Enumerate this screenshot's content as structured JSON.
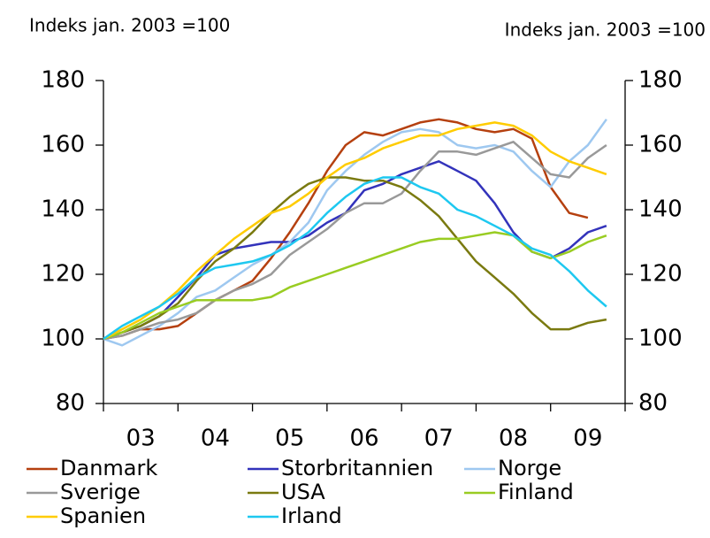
{
  "chart_data": {
    "type": "line",
    "ylabel": "Indeks jan. 2003 =100",
    "y2label": "Indeks jan. 2003 =100",
    "x": [
      2003,
      2003.25,
      2003.5,
      2003.75,
      2004,
      2004.25,
      2004.5,
      2004.75,
      2005,
      2005.25,
      2005.5,
      2005.75,
      2006,
      2006.25,
      2006.5,
      2006.75,
      2007,
      2007.25,
      2007.5,
      2007.75,
      2008,
      2008.25,
      2008.5,
      2008.75,
      2009,
      2009.25,
      2009.5,
      2009.75
    ],
    "xlim": [
      2003,
      2010
    ],
    "xticks": [
      {
        "value": 2003.5,
        "label": "03"
      },
      {
        "value": 2004.5,
        "label": "04"
      },
      {
        "value": 2005.5,
        "label": "05"
      },
      {
        "value": 2006.5,
        "label": "06"
      },
      {
        "value": 2007.5,
        "label": "07"
      },
      {
        "value": 2008.5,
        "label": "08"
      },
      {
        "value": 2009.5,
        "label": "09"
      }
    ],
    "ylim": [
      80,
      180
    ],
    "yticks": [
      80,
      100,
      120,
      140,
      160,
      180
    ],
    "y2lim": [
      80,
      180
    ],
    "y2ticks": [
      80,
      100,
      120,
      140,
      160,
      180
    ],
    "grid": false,
    "series": [
      {
        "name": "Danmark",
        "color": "#b5400f",
        "values": [
          100,
          101,
          103,
          103,
          104,
          108,
          112,
          115,
          118,
          125,
          133,
          142,
          152,
          160,
          164,
          163,
          165,
          167,
          168,
          167,
          165,
          164,
          165,
          162,
          147,
          139,
          137.5,
          null
        ]
      },
      {
        "name": "Storbritannien",
        "color": "#3333bb",
        "values": [
          100,
          102,
          104,
          107,
          113,
          119,
          126,
          128,
          129,
          130,
          130,
          132,
          136,
          139,
          146,
          148,
          151,
          153,
          155,
          152,
          149,
          142,
          133,
          127,
          125,
          128,
          133,
          135
        ]
      },
      {
        "name": "Norge",
        "color": "#9ec8f0",
        "values": [
          100,
          98,
          101,
          104,
          108,
          113,
          115,
          119,
          123,
          126,
          130,
          136,
          146,
          152,
          157,
          161,
          164,
          165,
          164,
          160,
          159,
          160,
          158,
          152,
          147,
          155,
          160,
          168
        ]
      },
      {
        "name": "Sverige",
        "color": "#999999",
        "values": [
          100,
          101,
          103,
          105,
          106,
          108,
          112,
          115,
          117,
          120,
          126,
          130,
          134,
          139,
          142,
          142,
          145,
          152,
          158,
          158,
          157,
          159,
          161,
          156,
          151,
          150,
          156,
          160
        ]
      },
      {
        "name": "USA",
        "color": "#7a7a10",
        "values": [
          100,
          102,
          104,
          107,
          111,
          118,
          124,
          128,
          133,
          139,
          144,
          148,
          150,
          150,
          149,
          149,
          147,
          143,
          138,
          131,
          124,
          119,
          114,
          108,
          103,
          103,
          105,
          106
        ]
      },
      {
        "name": "Finland",
        "color": "#99cc22",
        "values": [
          100,
          102,
          105,
          108,
          110,
          112,
          112,
          112,
          112,
          113,
          116,
          118,
          120,
          122,
          124,
          126,
          128,
          130,
          131,
          131,
          132,
          133,
          132,
          127,
          125,
          127,
          130,
          132
        ]
      },
      {
        "name": "Spanien",
        "color": "#ffcc00",
        "values": [
          100,
          103,
          106,
          110,
          115,
          121,
          126,
          131,
          135,
          139,
          141,
          145,
          150,
          154,
          156,
          159,
          161,
          163,
          163,
          165,
          166,
          167,
          166,
          163,
          158,
          155,
          153,
          151
        ]
      },
      {
        "name": "Irland",
        "color": "#1ec8f0",
        "values": [
          100,
          104,
          107,
          110,
          114,
          119,
          122,
          123,
          124,
          126,
          129,
          133,
          139,
          144,
          148,
          150,
          150,
          147,
          145,
          140,
          138,
          135,
          132,
          128,
          126,
          121,
          115,
          110
        ]
      }
    ]
  }
}
